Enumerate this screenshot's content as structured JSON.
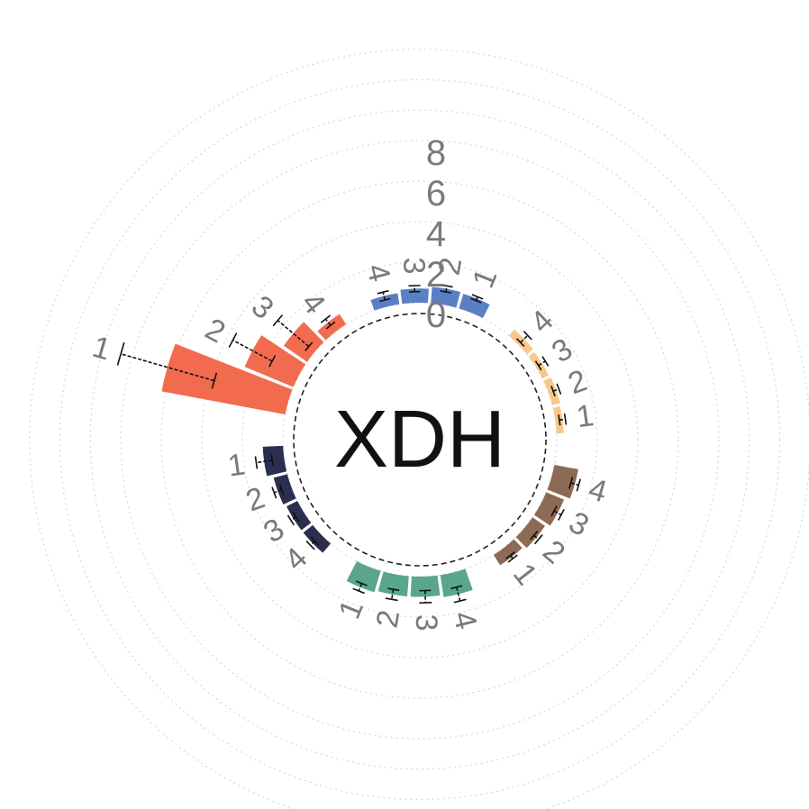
{
  "chart_data": {
    "type": "bar",
    "layout": "radial",
    "title": "XDH",
    "radial_ticks": [
      "0",
      "2",
      "4",
      "6",
      "8"
    ],
    "rlim": [
      0,
      8
    ],
    "grid": true,
    "groups": [
      {
        "color": "#f26b4f",
        "categories": [
          "1",
          "2",
          "3",
          "4"
        ],
        "values": [
          6.2,
          2.6,
          1.4,
          0.6
        ],
        "errors": [
          2.4,
          1.1,
          1.0,
          0.2
        ]
      },
      {
        "color": "#5b7fc4",
        "categories": [
          "4",
          "3",
          "2",
          "1"
        ],
        "values": [
          0.55,
          0.7,
          0.8,
          0.75
        ],
        "errors": [
          0.2,
          0.15,
          0.15,
          0.1
        ]
      },
      {
        "color": "#f9c789",
        "categories": [
          "4",
          "3",
          "2",
          "1"
        ],
        "values": [
          0.4,
          0.35,
          0.4,
          0.35
        ],
        "errors": [
          0.25,
          0.2,
          0.15,
          0.15
        ]
      },
      {
        "color": "#8c6a54",
        "categories": [
          "4",
          "3",
          "2",
          "1"
        ],
        "values": [
          1.2,
          0.95,
          0.75,
          0.6
        ],
        "errors": [
          0.2,
          0.2,
          0.15,
          0.1
        ]
      },
      {
        "color": "#5aa68a",
        "categories": [
          "4",
          "3",
          "2",
          "1"
        ],
        "values": [
          1.1,
          1.0,
          1.0,
          1.1
        ],
        "errors": [
          0.35,
          0.3,
          0.25,
          0.2
        ]
      },
      {
        "color": "#2b2f4f",
        "categories": [
          "4",
          "3",
          "2",
          "1"
        ],
        "values": [
          0.6,
          0.6,
          0.7,
          1.0
        ],
        "errors": [
          0.15,
          0.15,
          0.2,
          0.4
        ]
      }
    ]
  }
}
